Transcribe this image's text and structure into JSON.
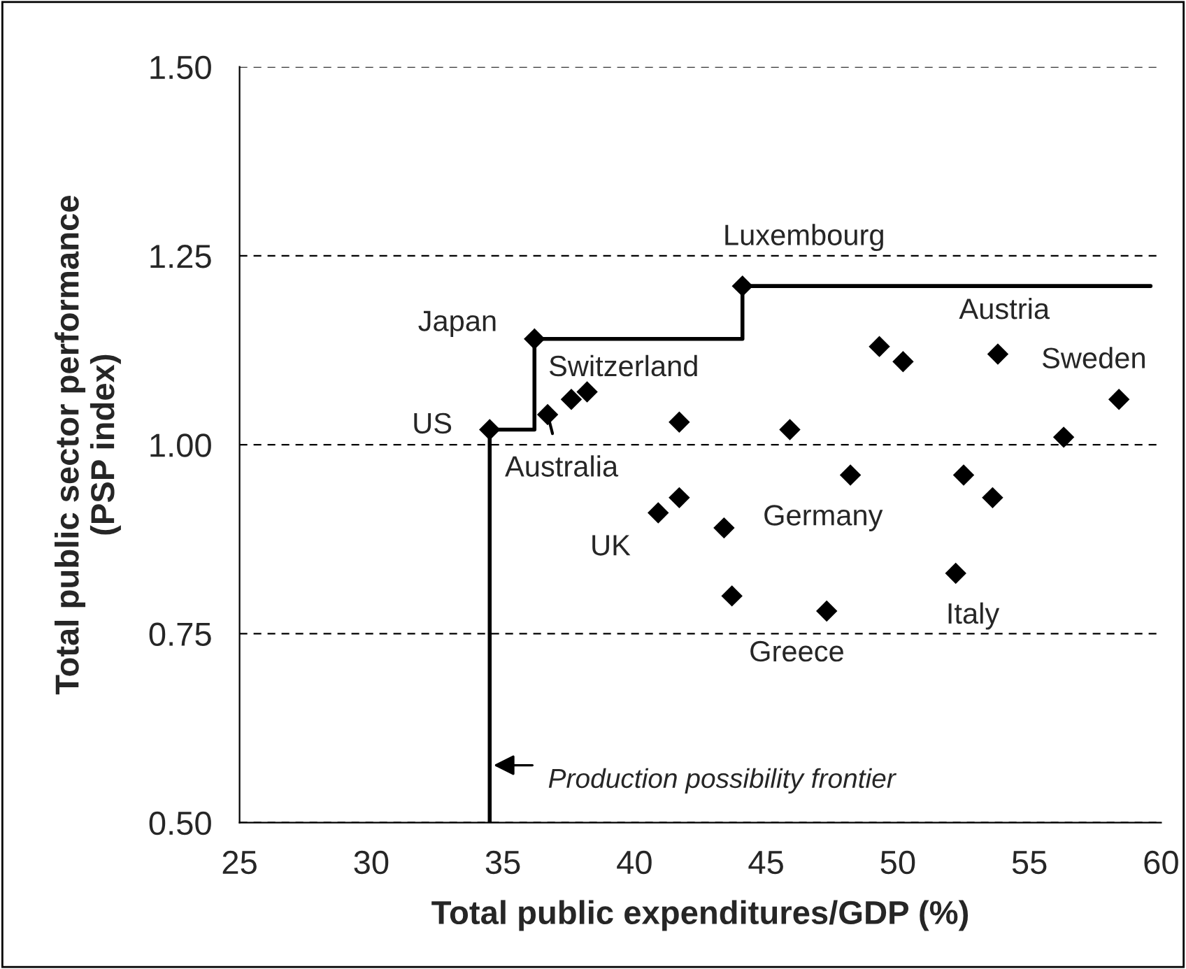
{
  "chart_data": {
    "type": "scatter",
    "xlabel": "Total public expenditures/GDP (%)",
    "ylabel": "Total public sector performance\n(PSP index)",
    "xlim": [
      25,
      60
    ],
    "xticks": [
      25,
      30,
      35,
      40,
      45,
      50,
      55,
      60
    ],
    "ylim": [
      0.5,
      1.5
    ],
    "yticks": [
      {
        "value": 0.5,
        "label": "0.50"
      },
      {
        "value": 0.75,
        "label": "0.75"
      },
      {
        "value": 1.0,
        "label": "1.00"
      },
      {
        "value": 1.25,
        "label": "1.25"
      },
      {
        "value": 1.5,
        "label": "1.50"
      }
    ],
    "grid": "y",
    "legend": false,
    "series": [
      {
        "color": "#000000",
        "marker": "diamond",
        "x": [
          34.5,
          36.2,
          44.1,
          36.7,
          37.6,
          38.2,
          41.7,
          45.9,
          49.3,
          50.2,
          53.8,
          58.4,
          56.3,
          48.2,
          52.5,
          53.6,
          52.2,
          47.3,
          40.9,
          41.7,
          43.4,
          43.7
        ],
        "values": [
          1.02,
          1.14,
          1.21,
          1.04,
          1.06,
          1.07,
          1.03,
          1.02,
          1.13,
          1.11,
          1.12,
          1.06,
          1.01,
          0.96,
          0.96,
          0.93,
          0.83,
          0.78,
          0.91,
          0.93,
          0.89,
          0.8
        ]
      },
      {
        "type": "step",
        "color": "#000000",
        "marker": "none",
        "line_style": "solid",
        "x": [
          34.5,
          34.5,
          36.2,
          44.1,
          59.6
        ],
        "values": [
          0.5,
          1.02,
          1.14,
          1.21,
          1.21
        ]
      }
    ],
    "annotations": [
      {
        "text": "US",
        "x": 34.5,
        "y": 1.02
      },
      {
        "text": "Japan",
        "x": 36.2,
        "y": 1.14
      },
      {
        "text": "Luxembourg",
        "x": 44.1,
        "y": 1.21
      },
      {
        "text": "Australia",
        "x": 36.7,
        "y": 1.04
      },
      {
        "text": "Switzerland",
        "x": 38.2,
        "y": 1.07
      },
      {
        "text": "Austria",
        "x": 53.8,
        "y": 1.12
      },
      {
        "text": "Sweden",
        "x": 58.4,
        "y": 1.06
      },
      {
        "text": "Germany",
        "x": 48.2,
        "y": 0.96
      },
      {
        "text": "UK",
        "x": 40.9,
        "y": 0.91
      },
      {
        "text": "Italy",
        "x": 52.2,
        "y": 0.83
      },
      {
        "text": "Greece",
        "x": 47.3,
        "y": 0.78
      },
      {
        "text": "Production possibility frontier",
        "x": 34.5,
        "y": 0.576
      }
    ]
  }
}
